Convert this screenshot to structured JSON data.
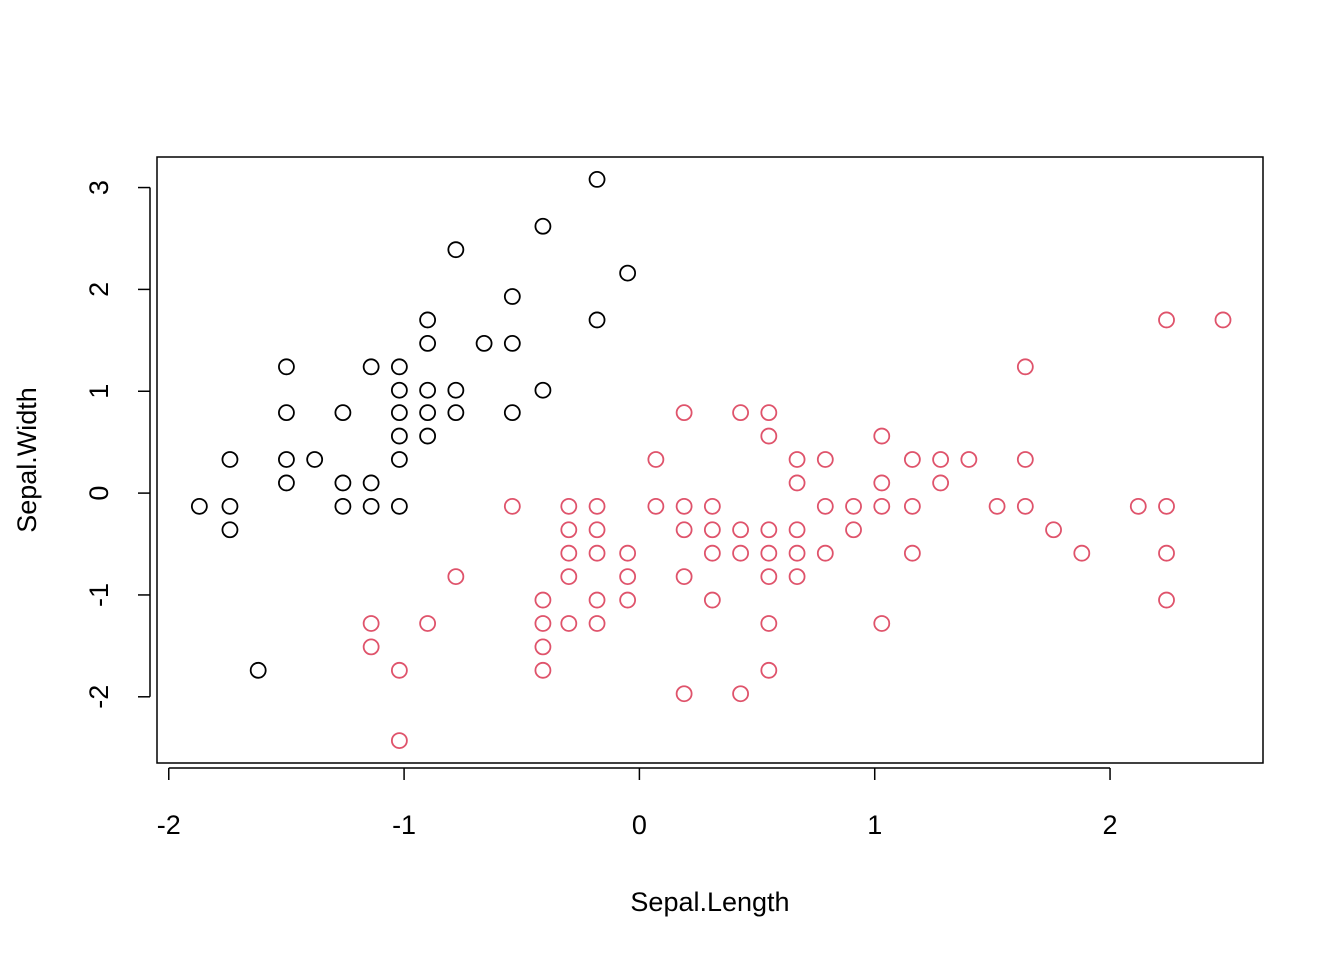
{
  "chart_data": {
    "type": "scatter",
    "xlabel": "Sepal.Length",
    "ylabel": "Sepal.Width",
    "xlim": [
      -2.05,
      2.65
    ],
    "ylim": [
      -2.65,
      3.3
    ],
    "xticks": [
      -2,
      -1,
      0,
      1,
      2
    ],
    "yticks": [
      -2,
      -1,
      0,
      1,
      2,
      3
    ],
    "xtick_labels": [
      "-2",
      "-1",
      "0",
      "1",
      "2"
    ],
    "ytick_labels": [
      "-2",
      "-1",
      "0",
      "1",
      "2",
      "3"
    ],
    "grid": false,
    "legend": "none",
    "series": [
      {
        "color": "#000000",
        "marker": "open-circle",
        "points": [
          [
            -0.18,
            3.08
          ],
          [
            -0.41,
            2.62
          ],
          [
            -0.78,
            2.39
          ],
          [
            -0.05,
            2.16
          ],
          [
            -0.54,
            1.93
          ],
          [
            -0.9,
            1.7
          ],
          [
            -0.18,
            1.7
          ],
          [
            -0.9,
            1.47
          ],
          [
            -0.66,
            1.47
          ],
          [
            -0.54,
            1.47
          ],
          [
            -1.5,
            1.24
          ],
          [
            -1.14,
            1.24
          ],
          [
            -1.02,
            1.24
          ],
          [
            -1.02,
            1.01
          ],
          [
            -0.9,
            1.01
          ],
          [
            -0.78,
            1.01
          ],
          [
            -0.41,
            1.01
          ],
          [
            -1.5,
            0.79
          ],
          [
            -1.26,
            0.79
          ],
          [
            -1.02,
            0.79
          ],
          [
            -0.9,
            0.79
          ],
          [
            -0.78,
            0.79
          ],
          [
            -0.54,
            0.79
          ],
          [
            -1.02,
            0.56
          ],
          [
            -0.9,
            0.56
          ],
          [
            -1.74,
            0.33
          ],
          [
            -1.5,
            0.33
          ],
          [
            -1.38,
            0.33
          ],
          [
            -1.02,
            0.33
          ],
          [
            -1.5,
            0.1
          ],
          [
            -1.26,
            0.1
          ],
          [
            -1.14,
            0.1
          ],
          [
            -1.87,
            -0.13
          ],
          [
            -1.74,
            -0.13
          ],
          [
            -1.26,
            -0.13
          ],
          [
            -1.14,
            -0.13
          ],
          [
            -1.02,
            -0.13
          ],
          [
            -1.74,
            -0.36
          ],
          [
            -1.62,
            -1.74
          ]
        ]
      },
      {
        "color": "#DF536B",
        "marker": "open-circle",
        "points": [
          [
            2.24,
            1.7
          ],
          [
            2.48,
            1.7
          ],
          [
            1.64,
            1.24
          ],
          [
            0.19,
            0.79
          ],
          [
            0.43,
            0.79
          ],
          [
            0.55,
            0.79
          ],
          [
            0.55,
            0.56
          ],
          [
            1.03,
            0.56
          ],
          [
            0.07,
            0.33
          ],
          [
            0.67,
            0.33
          ],
          [
            0.79,
            0.33
          ],
          [
            1.16,
            0.33
          ],
          [
            1.28,
            0.33
          ],
          [
            1.4,
            0.33
          ],
          [
            1.64,
            0.33
          ],
          [
            0.67,
            0.1
          ],
          [
            1.03,
            0.1
          ],
          [
            1.28,
            0.1
          ],
          [
            -0.54,
            -0.13
          ],
          [
            -0.3,
            -0.13
          ],
          [
            -0.18,
            -0.13
          ],
          [
            0.07,
            -0.13
          ],
          [
            0.19,
            -0.13
          ],
          [
            0.31,
            -0.13
          ],
          [
            0.79,
            -0.13
          ],
          [
            0.91,
            -0.13
          ],
          [
            1.03,
            -0.13
          ],
          [
            1.16,
            -0.13
          ],
          [
            1.52,
            -0.13
          ],
          [
            1.64,
            -0.13
          ],
          [
            2.12,
            -0.13
          ],
          [
            2.24,
            -0.13
          ],
          [
            -0.3,
            -0.36
          ],
          [
            -0.18,
            -0.36
          ],
          [
            0.19,
            -0.36
          ],
          [
            0.31,
            -0.36
          ],
          [
            0.43,
            -0.36
          ],
          [
            0.55,
            -0.36
          ],
          [
            0.67,
            -0.36
          ],
          [
            0.91,
            -0.36
          ],
          [
            1.76,
            -0.36
          ],
          [
            -0.3,
            -0.59
          ],
          [
            -0.18,
            -0.59
          ],
          [
            -0.05,
            -0.59
          ],
          [
            0.31,
            -0.59
          ],
          [
            0.43,
            -0.59
          ],
          [
            0.55,
            -0.59
          ],
          [
            0.67,
            -0.59
          ],
          [
            0.79,
            -0.59
          ],
          [
            1.16,
            -0.59
          ],
          [
            1.88,
            -0.59
          ],
          [
            2.24,
            -0.59
          ],
          [
            -0.78,
            -0.82
          ],
          [
            -0.3,
            -0.82
          ],
          [
            -0.05,
            -0.82
          ],
          [
            0.19,
            -0.82
          ],
          [
            0.55,
            -0.82
          ],
          [
            0.67,
            -0.82
          ],
          [
            -0.41,
            -1.05
          ],
          [
            -0.18,
            -1.05
          ],
          [
            -0.05,
            -1.05
          ],
          [
            0.31,
            -1.05
          ],
          [
            2.24,
            -1.05
          ],
          [
            -1.14,
            -1.28
          ],
          [
            -0.9,
            -1.28
          ],
          [
            -0.41,
            -1.28
          ],
          [
            -0.3,
            -1.28
          ],
          [
            -0.18,
            -1.28
          ],
          [
            0.55,
            -1.28
          ],
          [
            1.03,
            -1.28
          ],
          [
            -1.14,
            -1.51
          ],
          [
            -0.41,
            -1.51
          ],
          [
            -1.02,
            -1.74
          ],
          [
            -0.41,
            -1.74
          ],
          [
            0.55,
            -1.74
          ],
          [
            0.19,
            -1.97
          ],
          [
            0.43,
            -1.97
          ],
          [
            -1.02,
            -2.43
          ]
        ]
      }
    ]
  }
}
